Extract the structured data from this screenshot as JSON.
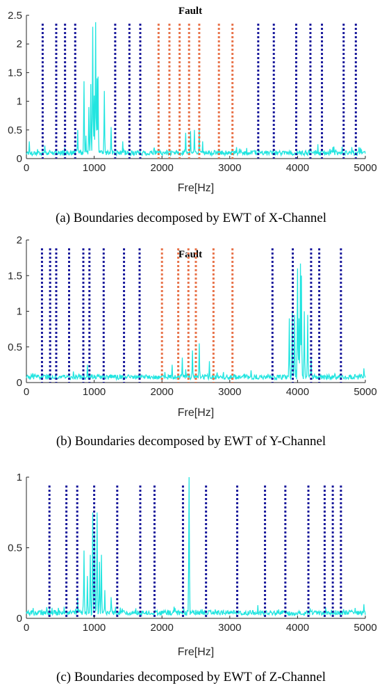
{
  "chart_data": [
    {
      "type": "line",
      "panel": "a",
      "title": "Fault",
      "xlabel": "Fre[Hz]",
      "ylabel": "",
      "xlim": [
        0,
        5000
      ],
      "ylim": [
        0,
        2.5
      ],
      "xticks": [
        0,
        1000,
        2000,
        3000,
        4000,
        5000
      ],
      "yticks": [
        0,
        0.5,
        1,
        1.5,
        2,
        2.5
      ],
      "ytick_labels": [
        "0",
        "0.5",
        "1",
        "1.5",
        "2",
        "2.5"
      ],
      "caption": "(a) Boundaries decomposed by EWT of X-Channel",
      "colors": {
        "spectrum": "#22e5e0",
        "boundary": "#1a1a9c",
        "fault_boundary": "#e8734a"
      },
      "spectrum_peaks": [
        [
          760,
          0.5
        ],
        [
          850,
          1.35
        ],
        [
          880,
          0.4
        ],
        [
          920,
          0.9
        ],
        [
          950,
          1.3
        ],
        [
          980,
          2.3
        ],
        [
          1000,
          1.1
        ],
        [
          1020,
          2.38
        ],
        [
          1040,
          1.4
        ],
        [
          1060,
          1.43
        ],
        [
          1150,
          1.18
        ],
        [
          1250,
          0.55
        ],
        [
          1420,
          0.3
        ],
        [
          2350,
          0.45
        ],
        [
          2420,
          0.48
        ],
        [
          2480,
          0.5
        ],
        [
          2550,
          0.52
        ],
        [
          2600,
          0.3
        ],
        [
          3100,
          0.2
        ],
        [
          4300,
          0.25
        ],
        [
          4800,
          0.2
        ],
        [
          40,
          0.3
        ]
      ],
      "boundaries": [
        240,
        440,
        570,
        720,
        1310,
        1520,
        1680,
        3420,
        3650,
        3980,
        4190,
        4360,
        4680,
        4860
      ],
      "fault_boundaries": [
        1950,
        2110,
        2260,
        2400,
        2550,
        2840,
        3040
      ]
    },
    {
      "type": "line",
      "panel": "b",
      "title": "Fault",
      "xlabel": "Fre[Hz]",
      "ylabel": "",
      "xlim": [
        0,
        5000
      ],
      "ylim": [
        0,
        2
      ],
      "xticks": [
        0,
        1000,
        2000,
        3000,
        4000,
        5000
      ],
      "yticks": [
        0,
        0.5,
        1,
        1.5,
        2
      ],
      "ytick_labels": [
        "0",
        "0.5",
        "1",
        "1.5",
        "2"
      ],
      "caption": "(b) Boundaries decomposed by EWT of Y-Channel",
      "colors": {
        "spectrum": "#22e5e0",
        "boundary": "#1a1a9c",
        "fault_boundary": "#e8734a"
      },
      "spectrum_peaks": [
        [
          2300,
          0.35
        ],
        [
          2450,
          0.45
        ],
        [
          2550,
          0.55
        ],
        [
          2700,
          0.3
        ],
        [
          3880,
          0.9
        ],
        [
          3920,
          1.0
        ],
        [
          3960,
          0.95
        ],
        [
          4000,
          1.6
        ],
        [
          4040,
          1.67
        ],
        [
          4060,
          1.5
        ],
        [
          4100,
          1.0
        ],
        [
          4150,
          0.95
        ],
        [
          4200,
          0.35
        ],
        [
          4020,
          0.9
        ],
        [
          4980,
          0.2
        ],
        [
          900,
          0.25
        ],
        [
          2150,
          0.25
        ]
      ],
      "boundaries": [
        230,
        350,
        440,
        630,
        840,
        930,
        1140,
        1440,
        1670,
        3630,
        3930,
        4200,
        4320,
        4640
      ],
      "fault_boundaries": [
        2000,
        2240,
        2390,
        2500,
        2760,
        3040
      ]
    },
    {
      "type": "line",
      "panel": "c",
      "title": "",
      "xlabel": "Fre[Hz]",
      "ylabel": "",
      "xlim": [
        0,
        5000
      ],
      "ylim": [
        0,
        1
      ],
      "xticks": [
        0,
        1000,
        2000,
        3000,
        4000,
        5000
      ],
      "yticks": [
        0,
        0.5,
        1
      ],
      "ytick_labels": [
        "0",
        "0.5",
        "1"
      ],
      "caption": "(c) Boundaries decomposed by EWT of Z-Channel",
      "colors": {
        "spectrum": "#22e5e0",
        "boundary": "#1a1a9c",
        "fault_boundary": "#e8734a"
      },
      "spectrum_peaks": [
        [
          850,
          0.48
        ],
        [
          900,
          0.3
        ],
        [
          940,
          0.45
        ],
        [
          980,
          0.75
        ],
        [
          1010,
          0.6
        ],
        [
          1040,
          0.75
        ],
        [
          1080,
          0.4
        ],
        [
          1110,
          0.45
        ],
        [
          1160,
          0.2
        ],
        [
          1250,
          0.15
        ],
        [
          2400,
          1.0
        ],
        [
          760,
          0.15
        ],
        [
          4980,
          0.1
        ]
      ],
      "boundaries": [
        340,
        590,
        750,
        1000,
        1340,
        1680,
        1890,
        2310,
        2650,
        3110,
        3520,
        3820,
        4160,
        4400,
        4520,
        4640
      ],
      "fault_boundaries": []
    }
  ]
}
